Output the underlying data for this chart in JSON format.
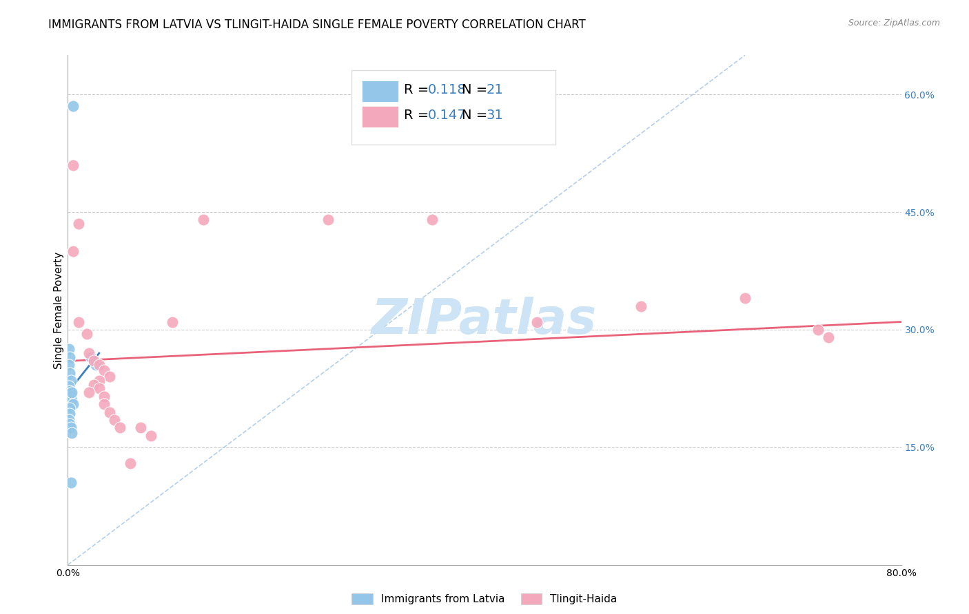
{
  "title": "IMMIGRANTS FROM LATVIA VS TLINGIT-HAIDA SINGLE FEMALE POVERTY CORRELATION CHART",
  "source": "Source: ZipAtlas.com",
  "ylabel": "Single Female Poverty",
  "legend_label1": "Immigrants from Latvia",
  "legend_label2": "Tlingit-Haida",
  "R1": 0.118,
  "N1": 21,
  "R2": 0.147,
  "N2": 31,
  "xlim": [
    0.0,
    0.8
  ],
  "ylim": [
    0.0,
    0.65
  ],
  "xticks": [
    0.0,
    0.1,
    0.2,
    0.3,
    0.4,
    0.5,
    0.6,
    0.7,
    0.8
  ],
  "yticks_right": [
    0.15,
    0.3,
    0.45,
    0.6
  ],
  "ytick_right_labels": [
    "15.0%",
    "30.0%",
    "45.0%",
    "60.0%"
  ],
  "color_blue": "#93c6e8",
  "color_blue_line": "#3a7fc1",
  "color_pink": "#f4a8bc",
  "color_pink_line": "#e8637a",
  "color_diag": "#a0c4e8",
  "color_grid": "#cccccc",
  "scatter_blue_x": [
    0.005,
    0.001,
    0.002,
    0.001,
    0.002,
    0.003,
    0.001,
    0.002,
    0.003,
    0.004,
    0.005,
    0.002,
    0.002,
    0.001,
    0.002,
    0.003,
    0.004,
    0.004,
    0.022,
    0.027,
    0.003
  ],
  "scatter_blue_y": [
    0.585,
    0.275,
    0.265,
    0.255,
    0.245,
    0.235,
    0.228,
    0.222,
    0.215,
    0.21,
    0.205,
    0.2,
    0.193,
    0.185,
    0.18,
    0.175,
    0.168,
    0.22,
    0.265,
    0.255,
    0.105
  ],
  "scatter_pink_x": [
    0.005,
    0.01,
    0.005,
    0.01,
    0.018,
    0.02,
    0.025,
    0.03,
    0.035,
    0.04,
    0.03,
    0.025,
    0.03,
    0.1,
    0.13,
    0.25,
    0.35,
    0.45,
    0.55,
    0.65,
    0.72,
    0.73,
    0.02,
    0.035,
    0.035,
    0.04,
    0.045,
    0.05,
    0.06,
    0.07,
    0.08
  ],
  "scatter_pink_y": [
    0.51,
    0.435,
    0.4,
    0.31,
    0.295,
    0.27,
    0.26,
    0.255,
    0.248,
    0.24,
    0.235,
    0.23,
    0.225,
    0.31,
    0.44,
    0.44,
    0.44,
    0.31,
    0.33,
    0.34,
    0.3,
    0.29,
    0.22,
    0.215,
    0.205,
    0.195,
    0.185,
    0.175,
    0.13,
    0.175,
    0.165
  ],
  "blue_line_x": [
    0.0,
    0.03
  ],
  "blue_line_y": [
    0.22,
    0.27
  ],
  "pink_line_x": [
    0.0,
    0.8
  ],
  "pink_line_y": [
    0.26,
    0.31
  ],
  "diag_line_x": [
    0.0,
    0.65
  ],
  "diag_line_y": [
    0.0,
    0.65
  ],
  "watermark": "ZIPatlas",
  "watermark_color": "#cce4f5",
  "background_color": "#ffffff",
  "title_fontsize": 12,
  "axis_label_fontsize": 11,
  "tick_fontsize": 10
}
